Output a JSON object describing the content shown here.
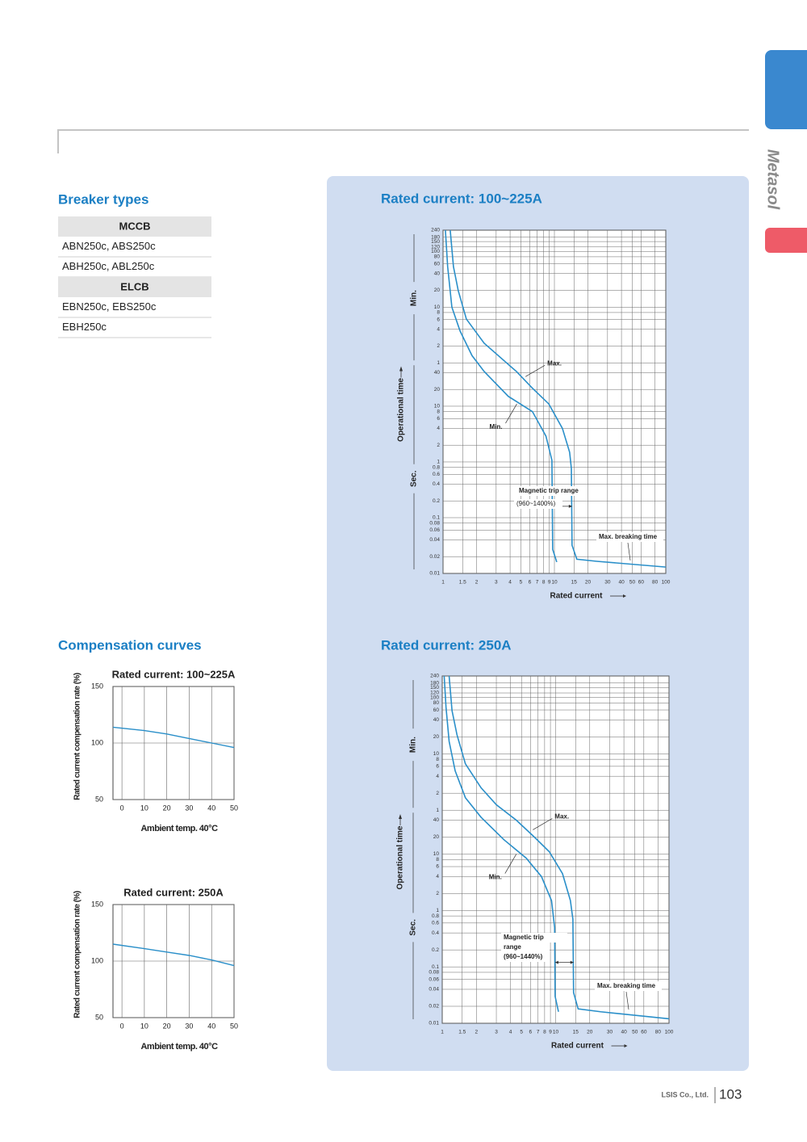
{
  "header": {
    "brand": "Metasol"
  },
  "breaker_types": {
    "title": "Breaker types",
    "groups": [
      {
        "name": "MCCB",
        "rows": [
          "ABN250c, ABS250c",
          "ABH250c, ABL250c"
        ]
      },
      {
        "name": "ELCB",
        "rows": [
          "EBN250c, EBS250c",
          "EBH250c"
        ]
      }
    ]
  },
  "compensation": {
    "title": "Compensation curves"
  },
  "chart_data": [
    {
      "type": "line",
      "title": "Rated current: 100~225A",
      "xlabel": "Rated current",
      "ylabel": "Operational time",
      "y_sections": [
        "Min.",
        "Sec."
      ],
      "log_x": true,
      "log_y": true,
      "grid": true,
      "xlim": [
        1,
        100
      ],
      "ylim": [
        0.01,
        14400
      ],
      "xticks": [
        1,
        1.5,
        2,
        3,
        4,
        5,
        6,
        7,
        8,
        9,
        10,
        15,
        20,
        30,
        40,
        50,
        60,
        80,
        100
      ],
      "yticks": [
        {
          "value": 14400,
          "label": "240"
        },
        {
          "value": 10800,
          "label": "180"
        },
        {
          "value": 9000,
          "label": "150"
        },
        {
          "value": 7200,
          "label": "120"
        },
        {
          "value": 6000,
          "label": "100"
        },
        {
          "value": 4800,
          "label": "80"
        },
        {
          "value": 3600,
          "label": "60"
        },
        {
          "value": 2400,
          "label": "40"
        },
        {
          "value": 1200,
          "label": "20"
        },
        {
          "value": 600,
          "label": "10"
        },
        {
          "value": 480,
          "label": "8"
        },
        {
          "value": 360,
          "label": "6"
        },
        {
          "value": 240,
          "label": "4"
        },
        {
          "value": 120,
          "label": "2"
        },
        {
          "value": 60,
          "label": "1"
        },
        40,
        20,
        10,
        8,
        6,
        4,
        2,
        1,
        0.8,
        0.6,
        0.4,
        0.2,
        0.1,
        0.08,
        0.06,
        0.04,
        0.02,
        0.01
      ],
      "series": [
        {
          "name": "Max.",
          "color": "#2a8fc9",
          "x": [
            1.16,
            1.24,
            1.37,
            1.62,
            2.34,
            4.56,
            6.35,
            8.9,
            11.8,
            13.7,
            14.2,
            14.4,
            15.9,
            24,
            100
          ],
          "values": [
            14400,
            3200,
            1180,
            366,
            135,
            42,
            21,
            11,
            4,
            1.49,
            0.76,
            0.032,
            0.018,
            0.0165,
            0.013
          ]
        },
        {
          "name": "Min.",
          "color": "#2a8fc9",
          "x": [
            1.05,
            1.1,
            1.2,
            1.42,
            1.82,
            2.34,
            3.86,
            6.35,
            8.4,
            9.5,
            9.65,
            10.5
          ],
          "values": [
            14400,
            3200,
            600,
            225,
            81,
            42,
            15,
            8,
            2.9,
            1.07,
            0.027,
            0.016
          ]
        }
      ],
      "annotations": [
        "Magnetic trip range",
        "(960~1400%)",
        "Max. breaking time"
      ]
    },
    {
      "type": "line",
      "title": "Rated current: 250A",
      "xlabel": "Rated current",
      "ylabel": "Operational time",
      "y_sections": [
        "Min.",
        "Sec."
      ],
      "log_x": true,
      "log_y": true,
      "grid": true,
      "xlim": [
        1,
        100
      ],
      "ylim": [
        0.01,
        14400
      ],
      "xticks": [
        1,
        1.5,
        2,
        3,
        4,
        5,
        6,
        7,
        8,
        9,
        10,
        15,
        20,
        30,
        40,
        50,
        60,
        80,
        100
      ],
      "yticks": [
        {
          "value": 14400,
          "label": "240"
        },
        {
          "value": 10800,
          "label": "180"
        },
        {
          "value": 9000,
          "label": "150"
        },
        {
          "value": 7200,
          "label": "120"
        },
        {
          "value": 6000,
          "label": "100"
        },
        {
          "value": 4800,
          "label": "80"
        },
        {
          "value": 3600,
          "label": "60"
        },
        {
          "value": 2400,
          "label": "40"
        },
        {
          "value": 1200,
          "label": "20"
        },
        {
          "value": 600,
          "label": "10"
        },
        {
          "value": 480,
          "label": "8"
        },
        {
          "value": 360,
          "label": "6"
        },
        {
          "value": 240,
          "label": "4"
        },
        {
          "value": 120,
          "label": "2"
        },
        {
          "value": 60,
          "label": "1"
        },
        40,
        20,
        10,
        8,
        6,
        4,
        2,
        1,
        0.8,
        0.6,
        0.4,
        0.2,
        0.1,
        0.08,
        0.06,
        0.04,
        0.02,
        0.01
      ],
      "series": [
        {
          "name": "Max.",
          "color": "#2a8fc9",
          "x": [
            1.15,
            1.22,
            1.35,
            1.6,
            2.2,
            3,
            4.5,
            6.5,
            8.8,
            11.5,
            13.5,
            14.2,
            14.4,
            15.8,
            25,
            100
          ],
          "values": [
            14400,
            3500,
            1300,
            400,
            150,
            75,
            40,
            20,
            11,
            4.5,
            1.5,
            0.7,
            0.035,
            0.018,
            0.016,
            0.012
          ]
        },
        {
          "name": "Min.",
          "color": "#2a8fc9",
          "x": [
            1.04,
            1.08,
            1.15,
            1.3,
            1.6,
            2.2,
            3.5,
            5.5,
            7.5,
            9.2,
            9.8,
            9.9,
            10.6
          ],
          "values": [
            14400,
            4000,
            1000,
            300,
            100,
            45,
            18,
            8.5,
            4,
            1.5,
            0.5,
            0.03,
            0.016
          ]
        }
      ],
      "annotations": [
        "Magnetic trip",
        "range",
        "(960~1440%)",
        "Max. breaking time"
      ]
    },
    {
      "type": "line",
      "title": "Rated current: 100~225A",
      "xlabel": "Ambient temp. 40°C",
      "ylabel": "Rated current compensation rate (%)",
      "grid": true,
      "xlim": [
        -4,
        50
      ],
      "ylim": [
        50,
        150
      ],
      "xticks": [
        0,
        10,
        20,
        30,
        40,
        50
      ],
      "yticks": [
        50,
        100,
        150
      ],
      "series": [
        {
          "color": "#2a8fc9",
          "x": [
            -4,
            10,
            20,
            30,
            40,
            50
          ],
          "values": [
            114,
            111,
            108,
            104,
            100,
            96
          ]
        }
      ]
    },
    {
      "type": "line",
      "title": "Rated current: 250A",
      "xlabel": "Ambient temp. 40°C",
      "ylabel": "Rated current compensation rate (%)",
      "grid": true,
      "xlim": [
        -4,
        50
      ],
      "ylim": [
        50,
        150
      ],
      "xticks": [
        0,
        10,
        20,
        30,
        40,
        50
      ],
      "yticks": [
        50,
        100,
        150
      ],
      "series": [
        {
          "color": "#2a8fc9",
          "x": [
            -4,
            10,
            20,
            30,
            40,
            50
          ],
          "values": [
            115,
            111,
            108,
            105,
            101,
            96
          ]
        }
      ]
    }
  ],
  "footer": {
    "company": "LSIS Co., Ltd.",
    "page": "103"
  }
}
